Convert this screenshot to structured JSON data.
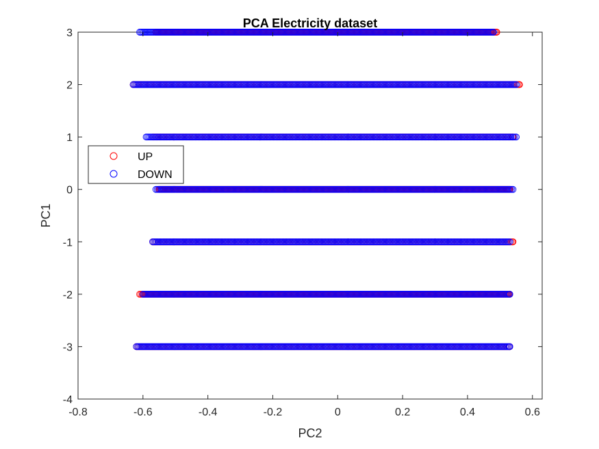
{
  "chart_data": {
    "type": "scatter",
    "title": "PCA Electricity dataset",
    "xlabel": "PC2",
    "ylabel": "PC1",
    "xlim": [
      -0.8,
      0.63
    ],
    "ylim": [
      -4,
      3
    ],
    "xticks": [
      -0.8,
      -0.6,
      -0.4,
      -0.2,
      0,
      0.2,
      0.4,
      0.6
    ],
    "xtick_labels": [
      "-0.8",
      "-0.6",
      "-0.4",
      "-0.2",
      "0",
      "0.2",
      "0.4",
      "0.6"
    ],
    "yticks": [
      -4,
      -3,
      -2,
      -1,
      0,
      1,
      2,
      3
    ],
    "ytick_labels": [
      "-4",
      "-3",
      "-2",
      "-1",
      "0",
      "1",
      "2",
      "3"
    ],
    "grid": false,
    "legend_position": "left",
    "marker": "open-circle",
    "series": [
      {
        "name": "UP",
        "color": "#ff0000",
        "rows": [
          {
            "y": 3,
            "x_min": -0.56,
            "x_max": 0.49
          },
          {
            "y": 2,
            "x_min": -0.63,
            "x_max": 0.56
          },
          {
            "y": 1,
            "x_min": -0.57,
            "x_max": 0.54
          },
          {
            "y": 0,
            "x_min": -0.55,
            "x_max": 0.53
          },
          {
            "y": -1,
            "x_min": -0.57,
            "x_max": 0.54
          },
          {
            "y": -2,
            "x_min": -0.61,
            "x_max": 0.53
          },
          {
            "y": -3,
            "x_min": -0.62,
            "x_max": 0.53
          }
        ]
      },
      {
        "name": "DOWN",
        "color": "#0000ff",
        "rows": [
          {
            "y": 3,
            "x_min": -0.61,
            "x_max": 0.48
          },
          {
            "y": 2,
            "x_min": -0.63,
            "x_max": 0.55
          },
          {
            "y": 1,
            "x_min": -0.59,
            "x_max": 0.55
          },
          {
            "y": 0,
            "x_min": -0.56,
            "x_max": 0.54
          },
          {
            "y": -1,
            "x_min": -0.57,
            "x_max": 0.53
          },
          {
            "y": -2,
            "x_min": -0.6,
            "x_max": 0.53
          },
          {
            "y": -3,
            "x_min": -0.62,
            "x_max": 0.53
          }
        ]
      }
    ]
  }
}
